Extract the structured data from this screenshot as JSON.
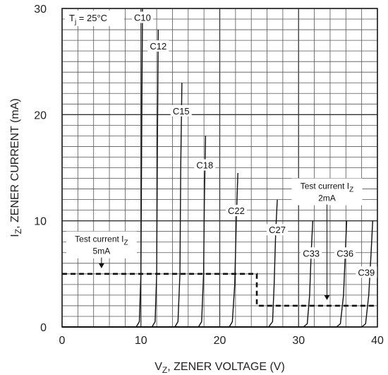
{
  "chart_data": {
    "type": "line",
    "title": "",
    "xlabel": "V_Z, ZENER VOLTAGE (V)",
    "ylabel": "I_Z, ZENER CURRENT (mA)",
    "xlim": [
      0,
      40
    ],
    "ylim": [
      0,
      30
    ],
    "x_ticks": [
      "0",
      "10",
      "20",
      "30",
      "40"
    ],
    "y_ticks": [
      "0",
      "10",
      "20",
      "30"
    ],
    "grid": true,
    "condition": {
      "main": "T",
      "sub": "j",
      "rest": " = 25°C"
    },
    "series": [
      {
        "name": "C10",
        "x": [
          0,
          9.4,
          9.8,
          10.0,
          10.1,
          10.2
        ],
        "y": [
          0,
          0,
          0.5,
          5,
          18,
          30
        ]
      },
      {
        "name": "C12",
        "x": [
          0,
          11.4,
          11.8,
          12.0,
          12.1,
          12.2
        ],
        "y": [
          0,
          0,
          0.5,
          5,
          18,
          28
        ]
      },
      {
        "name": "C15",
        "x": [
          0,
          14.3,
          14.7,
          14.95,
          15.05,
          15.2
        ],
        "y": [
          0,
          0,
          0.5,
          5,
          15,
          23
        ]
      },
      {
        "name": "C18",
        "x": [
          0,
          17.3,
          17.7,
          17.95,
          18.05,
          18.2
        ],
        "y": [
          0,
          0,
          0.5,
          5,
          12,
          18
        ]
      },
      {
        "name": "C22",
        "x": [
          0,
          21.2,
          21.6,
          21.9,
          22.1,
          22.3
        ],
        "y": [
          0,
          0,
          0.5,
          4,
          10,
          14.5
        ]
      },
      {
        "name": "C27",
        "x": [
          0,
          26.2,
          26.7,
          26.9,
          27.1,
          27.3
        ],
        "y": [
          0,
          0,
          0.5,
          4,
          9,
          12
        ]
      },
      {
        "name": "C33",
        "x": [
          0,
          30.6,
          31.1,
          31.4,
          31.6,
          31.8
        ],
        "y": [
          0,
          0,
          0.3,
          3,
          7,
          10
        ]
      },
      {
        "name": "C36",
        "x": [
          0,
          34.8,
          35.3,
          35.7,
          35.9,
          36.1
        ],
        "y": [
          0,
          0,
          0.3,
          3,
          6.5,
          10
        ]
      },
      {
        "name": "C39",
        "x": [
          0,
          38.0,
          38.5,
          38.9,
          39.2,
          39.4
        ],
        "y": [
          0,
          0,
          0.3,
          3,
          7,
          10
        ]
      }
    ],
    "curve_labels": [
      {
        "text": "C10",
        "x": 10.2,
        "y": 29.1
      },
      {
        "text": "C12",
        "x": 12.2,
        "y": 26.4
      },
      {
        "text": "C15",
        "x": 15.1,
        "y": 20.3
      },
      {
        "text": "C18",
        "x": 18.1,
        "y": 15.2
      },
      {
        "text": "C22",
        "x": 22.1,
        "y": 10.9
      },
      {
        "text": "C27",
        "x": 27.3,
        "y": 9.1
      },
      {
        "text": "C33",
        "x": 31.6,
        "y": 6.9
      },
      {
        "text": "C36",
        "x": 35.9,
        "y": 6.9
      },
      {
        "text": "C39",
        "x": 38.6,
        "y": 5.1
      }
    ],
    "test_current_5mA": {
      "line1_main": "Test current I",
      "line1_sub": "Z",
      "line2": "5mA",
      "path": [
        [
          0,
          5
        ],
        [
          24.7,
          5
        ],
        [
          24.7,
          2
        ],
        [
          40,
          2
        ]
      ],
      "arrow_at": [
        5,
        5.6
      ],
      "label_at": [
        5,
        8
      ]
    },
    "test_current_2mA": {
      "line1_main": "Test current I",
      "line1_sub": "Z",
      "line2": "2mA",
      "arrow_at": [
        33.6,
        2.6
      ],
      "label_at": [
        33.6,
        13
      ]
    }
  }
}
